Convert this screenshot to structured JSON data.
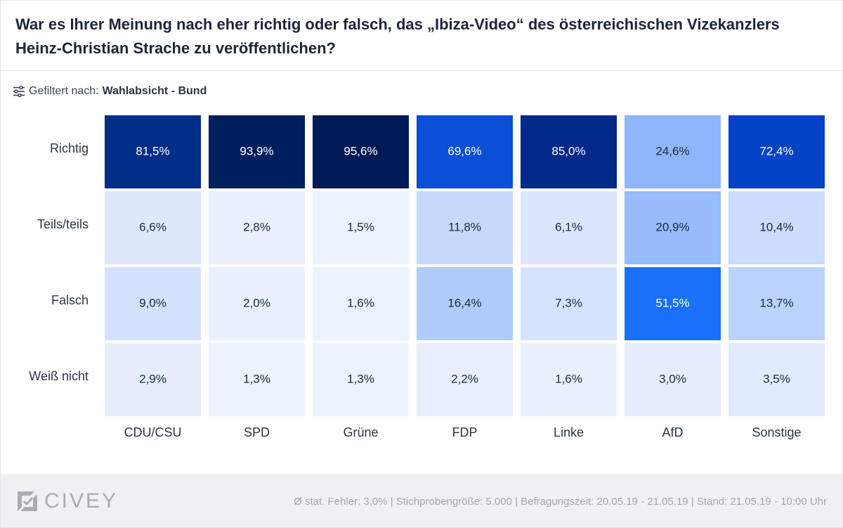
{
  "title": "War es Ihrer Meinung nach eher richtig oder falsch, das „Ibiza-Video“ des österreichischen Vizekanzlers Heinz-Christian Strache zu veröffentlichen?",
  "filter": {
    "label": "Gefiltert nach:",
    "value": "Wahlabsicht - Bund",
    "icon": "sliders-icon"
  },
  "chart_data": {
    "type": "heatmap",
    "title": "War es Ihrer Meinung nach eher richtig oder falsch, das „Ibiza-Video“ des österreichischen Vizekanzlers Heinz-Christian Strache zu veröffentlichen?",
    "columns": [
      "CDU/CSU",
      "SPD",
      "Grüne",
      "FDP",
      "Linke",
      "AfD",
      "Sonstige"
    ],
    "rows": [
      "Richtig",
      "Teils/teils",
      "Falsch",
      "Weiß nicht"
    ],
    "values": [
      [
        81.5,
        93.9,
        95.6,
        69.6,
        85.0,
        24.6,
        72.4
      ],
      [
        6.6,
        2.8,
        1.5,
        11.8,
        6.1,
        20.9,
        10.4
      ],
      [
        9.0,
        2.0,
        1.6,
        16.4,
        7.3,
        51.5,
        13.7
      ],
      [
        2.9,
        1.3,
        1.3,
        2.2,
        1.6,
        3.0,
        3.5
      ]
    ],
    "labels": [
      [
        "81,5%",
        "93,9%",
        "95,6%",
        "69,6%",
        "85,0%",
        "24,6%",
        "72,4%"
      ],
      [
        "6,6%",
        "2,8%",
        "1,5%",
        "11,8%",
        "6,1%",
        "20,9%",
        "10,4%"
      ],
      [
        "9,0%",
        "2,0%",
        "1,6%",
        "16,4%",
        "7,3%",
        "51,5%",
        "13,7%"
      ],
      [
        "2,9%",
        "1,3%",
        "1,3%",
        "2,2%",
        "1,6%",
        "3,0%",
        "3,5%"
      ]
    ],
    "unit": "%",
    "colors": {
      "richtig": [
        "#002d88",
        "#001f5f",
        "#001a55",
        "#0a4fd6",
        "#00298a",
        "#8fb6fb",
        "#0443c5"
      ],
      "teils": [
        "#dde8fd",
        "#e9f0fe",
        "#ecf2fe",
        "#c6d9fc",
        "#dbe6fd",
        "#97bbfb",
        "#cbdcfc"
      ],
      "falsch": [
        "#d3e1fd",
        "#eaf1fe",
        "#ecf2fe",
        "#afcbfc",
        "#d6e3fd",
        "#1a6ffb",
        "#bad2fc"
      ],
      "weiss_nicht": [
        "#e6eefe",
        "#edf3fe",
        "#edf3fe",
        "#e8effe",
        "#eaf1fe",
        "#e5edfe",
        "#e2ebfe"
      ],
      "text_dark": "#1e2a3a",
      "text_light": "#ffffff"
    }
  },
  "footer": {
    "brand": "CIVEY",
    "meta": "Ø stat. Fehler: 3,0% | Stichprobengröße: 5.000 | Befragungszeit: 20.05.19 - 21.05.19 | Stand: 21.05.19 - 10:00 Uhr"
  }
}
